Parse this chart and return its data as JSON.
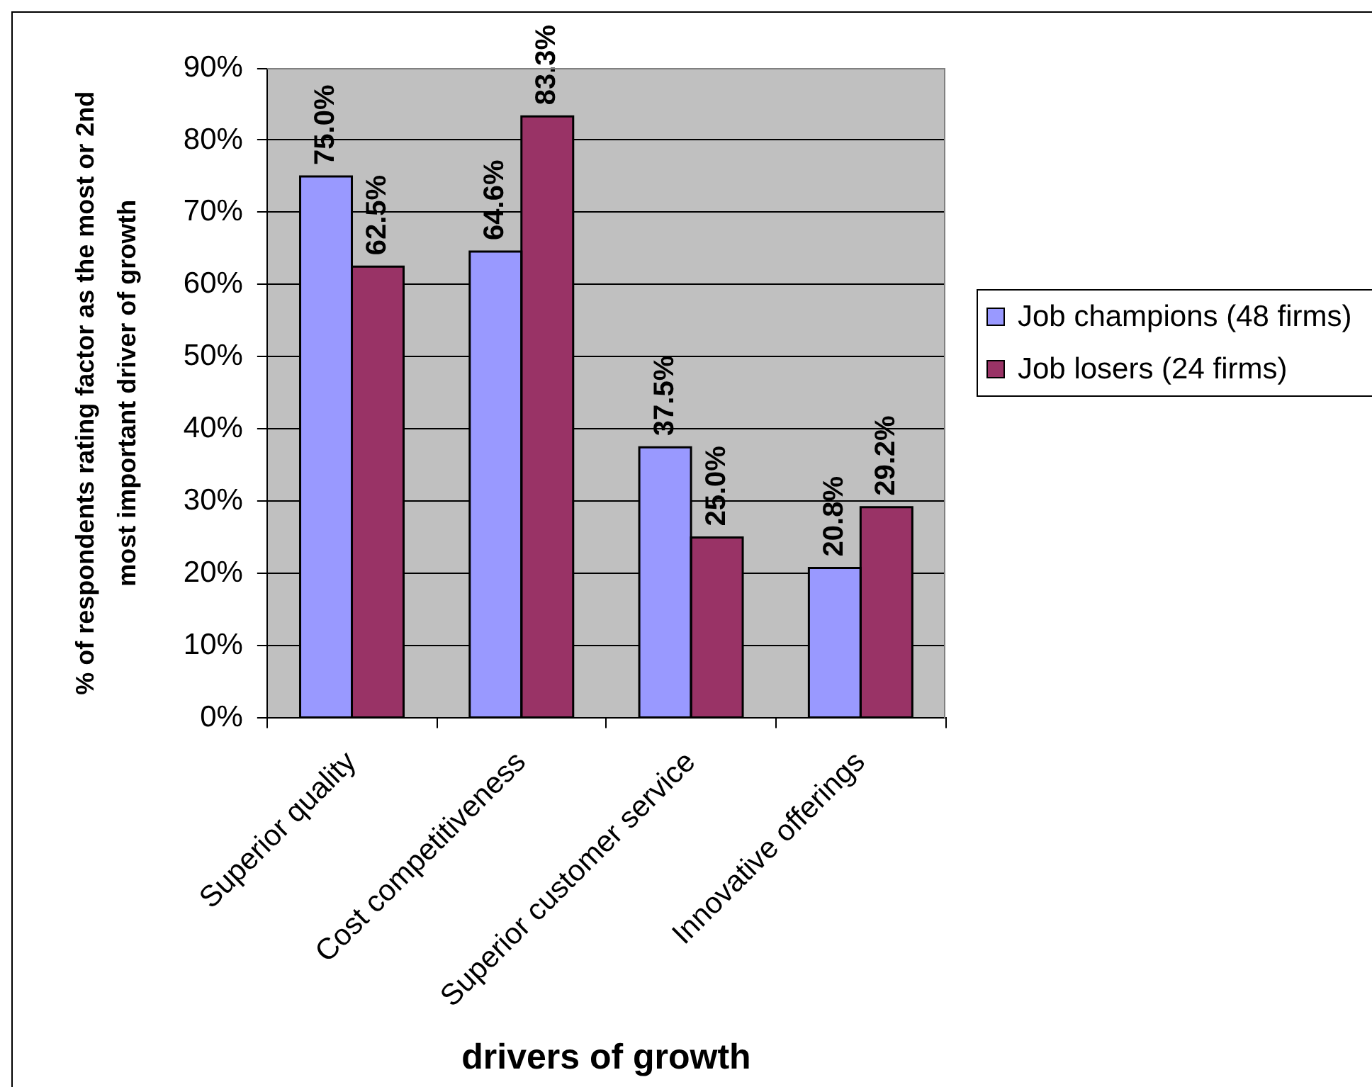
{
  "chart_data": {
    "type": "bar",
    "xlabel": "drivers of growth",
    "ylabel": "% of respondents rating factor as the most or 2nd most important driver of growth",
    "categories": [
      "Superior quality",
      "Cost competitiveness",
      "Superior customer service",
      "Innovative offerings"
    ],
    "series": [
      {
        "name": "Job champions (48 firms)",
        "color": "#9999ff",
        "values": [
          75.0,
          64.6,
          37.5,
          20.8
        ],
        "value_labels": [
          "75.0%",
          "64.6%",
          "37.5%",
          "20.8%"
        ]
      },
      {
        "name": "Job losers (24 firms)",
        "color": "#993366",
        "values": [
          62.5,
          83.3,
          25.0,
          29.2
        ],
        "value_labels": [
          "62.5%",
          "83.3%",
          "25.0%",
          "29.2%"
        ]
      }
    ],
    "ylim": [
      0,
      90
    ],
    "yticks": [
      {
        "value": 0,
        "label": "0%"
      },
      {
        "value": 10,
        "label": "10%"
      },
      {
        "value": 20,
        "label": "20%"
      },
      {
        "value": 30,
        "label": "30%"
      },
      {
        "value": 40,
        "label": "40%"
      },
      {
        "value": 50,
        "label": "50%"
      },
      {
        "value": 60,
        "label": "60%"
      },
      {
        "value": 70,
        "label": "70%"
      },
      {
        "value": 80,
        "label": "80%"
      },
      {
        "value": 90,
        "label": "90%"
      }
    ],
    "grid": "y",
    "legend": "right"
  }
}
